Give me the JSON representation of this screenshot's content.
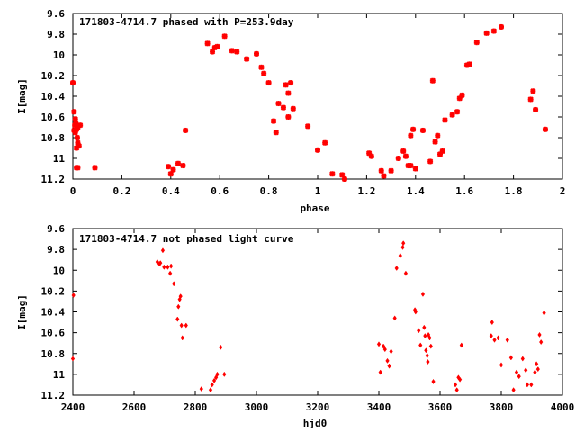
{
  "chart_data": [
    {
      "type": "scatter",
      "title": "171803-4714.7 phased with P=253.9day",
      "xlabel": "phase",
      "ylabel": "I[mag]",
      "xlim": [
        0,
        2
      ],
      "ylim": [
        11.2,
        9.6
      ],
      "y_inverted": true,
      "xticks": [
        "0",
        "0.2",
        "0.4",
        "0.6",
        "0.8",
        "1",
        "1.2",
        "1.4",
        "1.6",
        "1.8",
        "2"
      ],
      "yticks": [
        "9.6",
        "9.8",
        "10",
        "10.2",
        "10.4",
        "10.6",
        "10.8",
        "11",
        "11.2"
      ],
      "grid": false,
      "marker": "star",
      "color": "#ff0000",
      "x": [
        0.0,
        0.005,
        0.01,
        0.012,
        0.008,
        0.015,
        0.02,
        0.01,
        0.018,
        0.02,
        0.015,
        0.025,
        0.03,
        0.005,
        0.015,
        0.02,
        0.09,
        0.39,
        0.4,
        0.41,
        0.43,
        0.45,
        0.46,
        0.55,
        0.57,
        0.58,
        0.59,
        0.62,
        0.65,
        0.67,
        0.71,
        0.75,
        0.77,
        0.78,
        0.8,
        0.82,
        0.83,
        0.84,
        0.86,
        0.87,
        0.88,
        0.88,
        0.89,
        0.9,
        0.96,
        1.0,
        1.03,
        1.06,
        1.1,
        1.11,
        1.21,
        1.22,
        1.26,
        1.27,
        1.3,
        1.33,
        1.35,
        1.36,
        1.37,
        1.38,
        1.38,
        1.39,
        1.4,
        1.43,
        1.46,
        1.47,
        1.48,
        1.49,
        1.5,
        1.51,
        1.52,
        1.55,
        1.57,
        1.58,
        1.59,
        1.61,
        1.62,
        1.65,
        1.69,
        1.72,
        1.75,
        1.87,
        1.88,
        1.89,
        1.93
      ],
      "y": [
        10.27,
        10.55,
        10.62,
        10.66,
        10.68,
        10.72,
        10.7,
        10.75,
        10.8,
        10.85,
        10.9,
        10.88,
        10.68,
        10.73,
        11.09,
        11.09,
        11.09,
        11.08,
        11.15,
        11.11,
        11.05,
        11.07,
        10.73,
        9.89,
        9.97,
        9.93,
        9.92,
        9.82,
        9.96,
        9.97,
        10.04,
        9.99,
        10.12,
        10.18,
        10.27,
        10.64,
        10.75,
        10.47,
        10.51,
        10.29,
        10.37,
        10.6,
        10.27,
        10.52,
        10.69,
        10.92,
        10.85,
        11.15,
        11.16,
        11.2,
        10.95,
        10.98,
        11.12,
        11.17,
        11.12,
        11.0,
        10.93,
        10.98,
        11.07,
        11.07,
        10.78,
        10.72,
        11.1,
        10.73,
        11.03,
        10.25,
        10.84,
        10.78,
        10.96,
        10.93,
        10.63,
        10.58,
        10.55,
        10.42,
        10.39,
        10.1,
        10.09,
        9.88,
        9.79,
        9.77,
        9.73,
        10.43,
        10.35,
        10.53,
        10.72
      ]
    },
    {
      "type": "scatter",
      "title": "171803-4714.7 not phased light curve",
      "xlabel": "hjd0",
      "ylabel": "I[mag]",
      "xlim": [
        2400,
        4000
      ],
      "ylim": [
        11.2,
        9.6
      ],
      "y_inverted": true,
      "xticks": [
        "2400",
        "2600",
        "2800",
        "3000",
        "3200",
        "3400",
        "3600",
        "3800",
        "4000"
      ],
      "yticks": [
        "9.6",
        "9.8",
        "10",
        "10.2",
        "10.4",
        "10.6",
        "10.8",
        "11",
        "11.2"
      ],
      "grid": false,
      "marker": "diamond",
      "color": "#ff0000",
      "x": [
        2400,
        2402,
        2676,
        2683,
        2686,
        2694,
        2698,
        2710,
        2718,
        2721,
        2730,
        2742,
        2745,
        2749,
        2752,
        2755,
        2758,
        2770,
        2820,
        2850,
        2855,
        2862,
        2868,
        2872,
        2883,
        2895,
        3400,
        3405,
        3415,
        3420,
        3428,
        3434,
        3440,
        3452,
        3458,
        3470,
        3478,
        3480,
        3488,
        3518,
        3520,
        3530,
        3536,
        3544,
        3548,
        3551,
        3554,
        3558,
        3560,
        3562,
        3566,
        3570,
        3578,
        3650,
        3655,
        3660,
        3665,
        3670,
        3767,
        3770,
        3778,
        3790,
        3800,
        3820,
        3832,
        3840,
        3850,
        3858,
        3870,
        3880,
        3885,
        3898,
        3910,
        3915,
        3920,
        3925,
        3930,
        3940
      ],
      "y": [
        10.85,
        10.24,
        9.92,
        9.94,
        9.93,
        9.81,
        9.97,
        9.97,
        10.03,
        9.96,
        10.13,
        10.47,
        10.35,
        10.28,
        10.25,
        10.53,
        10.65,
        10.53,
        11.14,
        11.15,
        11.1,
        11.06,
        11.03,
        11.0,
        10.74,
        11.0,
        10.71,
        10.98,
        10.73,
        10.76,
        10.87,
        10.92,
        10.78,
        10.46,
        9.98,
        9.86,
        9.78,
        9.74,
        10.03,
        10.38,
        10.4,
        10.58,
        10.72,
        10.23,
        10.55,
        10.63,
        10.77,
        10.82,
        10.88,
        10.62,
        10.65,
        10.73,
        11.07,
        11.1,
        11.15,
        11.03,
        11.05,
        10.72,
        10.63,
        10.5,
        10.67,
        10.65,
        10.91,
        10.67,
        10.84,
        11.15,
        10.98,
        11.02,
        10.85,
        10.96,
        11.1,
        11.1,
        10.98,
        10.9,
        10.95,
        10.62,
        10.69,
        10.41
      ]
    }
  ]
}
